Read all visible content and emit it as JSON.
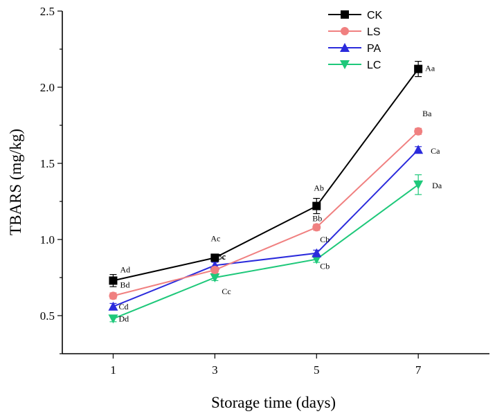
{
  "chart_data": {
    "type": "line",
    "title": "",
    "xlabel": "Storage time (days)",
    "ylabel": "TBARS (mg/kg)",
    "x": [
      1,
      3,
      5,
      7
    ],
    "x_ticks": [
      "1",
      "3",
      "5",
      "7"
    ],
    "y_ticks": [
      "0.5",
      "1.0",
      "1.5",
      "2.0",
      "2.5"
    ],
    "xlim": [
      0,
      8.4
    ],
    "ylim": [
      0.25,
      2.5
    ],
    "grid": false,
    "legend_position": "top-right",
    "series": [
      {
        "name": "CK",
        "color": "#000000",
        "marker": "square",
        "values": [
          0.73,
          0.88,
          1.22,
          2.12
        ],
        "errors": [
          0.04,
          0.02,
          0.05,
          0.05
        ],
        "labels": [
          "Ad",
          "Ac",
          "Ab",
          "Aa"
        ]
      },
      {
        "name": "LS",
        "color": "#f08080",
        "marker": "circle",
        "values": [
          0.63,
          0.8,
          1.08,
          1.71
        ],
        "errors": [
          0.02,
          0.02,
          0.02,
          0.02
        ],
        "labels": [
          "Bd",
          "BCc",
          "Bb",
          "Ba"
        ]
      },
      {
        "name": "PA",
        "color": "#2b2bdc",
        "marker": "triangle-up",
        "values": [
          0.56,
          0.83,
          0.91,
          1.59
        ],
        "errors": [
          0.02,
          0.02,
          0.02,
          0.02
        ],
        "labels": [
          "Cd",
          "ABc",
          "Cb",
          "Ca"
        ]
      },
      {
        "name": "LC",
        "color": "#1ec87a",
        "marker": "triangle-down",
        "values": [
          0.48,
          0.75,
          0.87,
          1.36
        ],
        "errors": [
          0.02,
          0.02,
          0.02,
          0.065
        ],
        "labels": [
          "Dd",
          "Cc",
          "Cb",
          "Da"
        ]
      }
    ]
  }
}
